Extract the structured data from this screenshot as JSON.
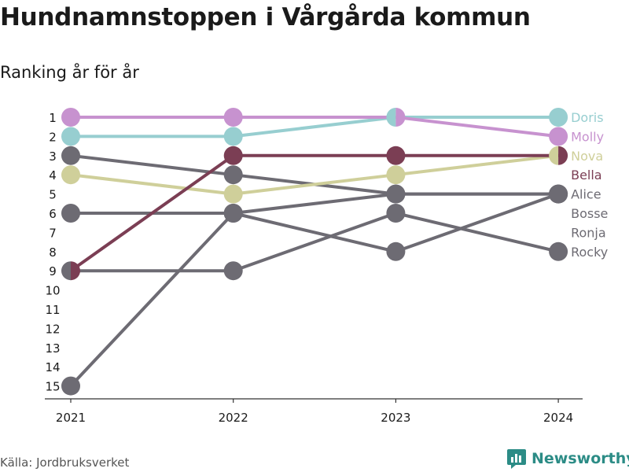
{
  "title": "Hundnamnstoppen i Vårgårda kommun",
  "subtitle": "Ranking år för år",
  "source": "Källa: Jordbruksverket",
  "brand": "Newsworthy",
  "colors": {
    "pink": "#c792cf",
    "teal": "#97ced0",
    "maroon": "#7b3e54",
    "olive": "#cfcf9a",
    "gray": "#6d6b73",
    "axis": "#333333",
    "brand": "#2c8c86"
  },
  "chart_data": {
    "type": "line",
    "x": [
      "2021",
      "2022",
      "2023",
      "2024"
    ],
    "y_ticks": [
      1,
      2,
      3,
      4,
      5,
      6,
      7,
      8,
      9,
      10,
      11,
      12,
      13,
      14,
      15
    ],
    "ylim": [
      15,
      1
    ],
    "y_reversed": true,
    "series": [
      {
        "name": "Alice",
        "color": "#6d6b73",
        "values": [
          3,
          4,
          5,
          5
        ]
      },
      {
        "name": "Bosse",
        "color": "#6d6b73",
        "values": [
          6,
          6,
          8,
          5
        ]
      },
      {
        "name": "Ronja",
        "color": "#6d6b73",
        "values": [
          15,
          6,
          5,
          5
        ]
      },
      {
        "name": "Rocky",
        "color": "#6d6b73",
        "values": [
          9,
          9,
          6,
          8
        ]
      },
      {
        "name": "Nova",
        "color": "#cfcf9a",
        "values": [
          4,
          5,
          4,
          3
        ]
      },
      {
        "name": "Doris",
        "color": "#97ced0",
        "values": [
          2,
          2,
          1,
          1
        ]
      },
      {
        "name": "Molly",
        "color": "#c792cf",
        "values": [
          1,
          1,
          1,
          2
        ]
      },
      {
        "name": "Bella",
        "color": "#7b3e54",
        "values": [
          9,
          3,
          3,
          3
        ]
      }
    ]
  }
}
